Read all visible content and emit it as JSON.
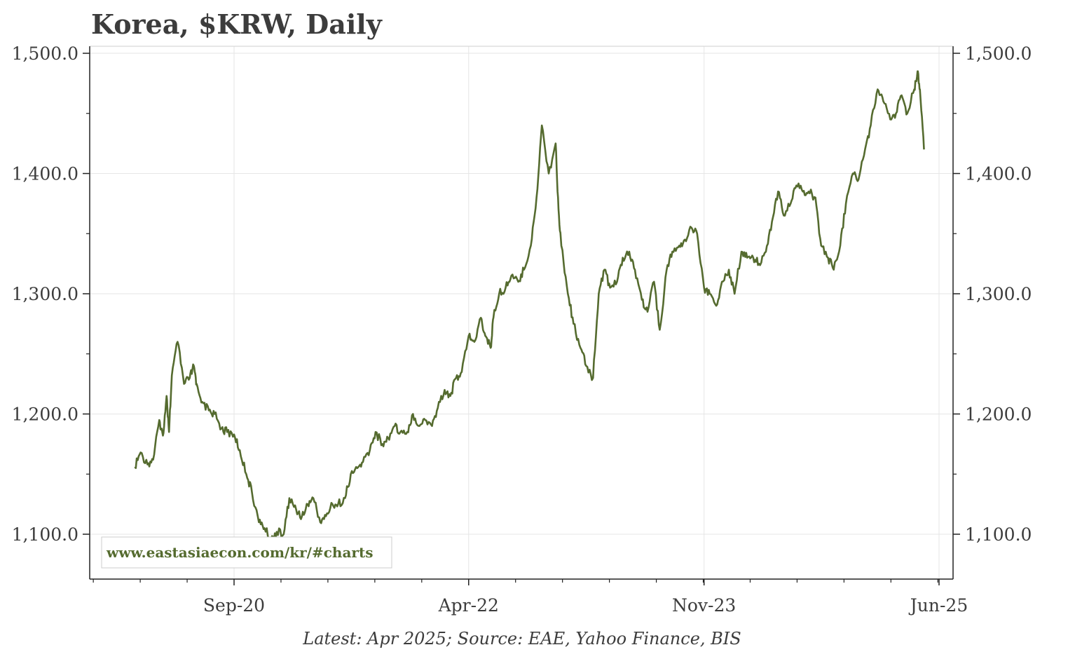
{
  "chart_data": {
    "type": "line",
    "title": "Korea, $KRW, Daily",
    "footnote": "Latest: Apr 2025; Source: EAE, Yahoo Finance, BIS",
    "watermark": "www.eastasiaecon.com/kr/#charts",
    "line_color": "#556b2f",
    "grid": true,
    "x_axis": {
      "ticks": [
        {
          "date": "2020-09-01",
          "label": "Sep-20"
        },
        {
          "date": "2022-04-01",
          "label": "Apr-22"
        },
        {
          "date": "2023-11-01",
          "label": "Nov-23"
        },
        {
          "date": "2025-06-01",
          "label": "Jun-25"
        }
      ],
      "range": [
        "2019-09-01",
        "2025-06-01"
      ]
    },
    "y_axis": {
      "range": [
        1066,
        1506
      ],
      "ticks": [
        {
          "value": 1100,
          "label": "1,100.0"
        },
        {
          "value": 1200,
          "label": "1,200.0"
        },
        {
          "value": 1300,
          "label": "1,300.0"
        },
        {
          "value": 1400,
          "label": "1,400.0"
        },
        {
          "value": 1500,
          "label": "1,500.0"
        }
      ]
    },
    "series": [
      {
        "x": [
          "2020-01-01",
          "2020-01-15",
          "2020-02-01",
          "2020-02-15",
          "2020-03-01",
          "2020-03-10",
          "2020-03-19",
          "2020-03-25",
          "2020-04-01",
          "2020-04-15",
          "2020-05-01",
          "2020-05-15",
          "2020-05-25",
          "2020-06-01",
          "2020-06-15",
          "2020-07-01",
          "2020-07-15",
          "2020-08-01",
          "2020-08-15",
          "2020-09-01",
          "2020-09-15",
          "2020-10-01",
          "2020-10-15",
          "2020-11-01",
          "2020-11-15",
          "2020-12-01",
          "2020-12-15",
          "2021-01-01",
          "2021-01-15",
          "2021-02-01",
          "2021-02-15",
          "2021-03-01",
          "2021-03-15",
          "2021-04-01",
          "2021-04-15",
          "2021-05-01",
          "2021-05-15",
          "2021-06-01",
          "2021-06-15",
          "2021-07-01",
          "2021-07-15",
          "2021-08-01",
          "2021-08-15",
          "2021-09-01",
          "2021-09-15",
          "2021-10-01",
          "2021-10-15",
          "2021-11-01",
          "2021-11-15",
          "2021-12-01",
          "2021-12-15",
          "2022-01-01",
          "2022-01-15",
          "2022-02-01",
          "2022-02-15",
          "2022-03-01",
          "2022-03-15",
          "2022-04-01",
          "2022-04-15",
          "2022-05-01",
          "2022-05-12",
          "2022-05-25",
          "2022-06-01",
          "2022-06-15",
          "2022-07-01",
          "2022-07-15",
          "2022-08-01",
          "2022-08-15",
          "2022-09-01",
          "2022-09-15",
          "2022-09-28",
          "2022-10-15",
          "2022-11-01",
          "2022-11-08",
          "2022-11-15",
          "2022-12-01",
          "2022-12-15",
          "2023-01-01",
          "2023-01-15",
          "2023-02-01",
          "2023-02-15",
          "2023-03-01",
          "2023-03-15",
          "2023-04-01",
          "2023-04-15",
          "2023-05-01",
          "2023-05-15",
          "2023-06-01",
          "2023-06-15",
          "2023-07-01",
          "2023-07-15",
          "2023-08-01",
          "2023-08-15",
          "2023-09-01",
          "2023-09-15",
          "2023-10-01",
          "2023-10-15",
          "2023-11-01",
          "2023-11-15",
          "2023-12-01",
          "2023-12-15",
          "2024-01-01",
          "2024-01-15",
          "2024-02-01",
          "2024-02-15",
          "2024-03-01",
          "2024-03-15",
          "2024-04-01",
          "2024-04-16",
          "2024-05-01",
          "2024-05-15",
          "2024-06-01",
          "2024-06-15",
          "2024-07-01",
          "2024-07-15",
          "2024-08-01",
          "2024-08-15",
          "2024-09-01",
          "2024-09-15",
          "2024-10-01",
          "2024-10-15",
          "2024-11-01",
          "2024-11-15",
          "2024-12-01",
          "2024-12-15",
          "2025-01-01",
          "2025-01-15",
          "2025-02-01",
          "2025-02-15",
          "2025-03-01",
          "2025-03-15",
          "2025-04-01",
          "2025-04-09",
          "2025-04-15",
          "2025-04-25"
        ],
        "y": [
          1156,
          1168,
          1158,
          1162,
          1195,
          1182,
          1215,
          1185,
          1232,
          1260,
          1225,
          1230,
          1240,
          1225,
          1210,
          1203,
          1200,
          1188,
          1185,
          1183,
          1170,
          1150,
          1135,
          1110,
          1105,
          1095,
          1102,
          1100,
          1130,
          1120,
          1115,
          1125,
          1130,
          1110,
          1115,
          1125,
          1125,
          1130,
          1150,
          1155,
          1160,
          1170,
          1185,
          1175,
          1180,
          1190,
          1185,
          1185,
          1200,
          1190,
          1195,
          1190,
          1205,
          1220,
          1215,
          1230,
          1235,
          1265,
          1260,
          1280,
          1265,
          1255,
          1280,
          1300,
          1305,
          1315,
          1310,
          1320,
          1340,
          1380,
          1440,
          1400,
          1425,
          1370,
          1340,
          1300,
          1275,
          1255,
          1240,
          1230,
          1300,
          1320,
          1305,
          1310,
          1330,
          1335,
          1320,
          1295,
          1285,
          1310,
          1270,
          1320,
          1335,
          1340,
          1345,
          1355,
          1350,
          1305,
          1300,
          1290,
          1310,
          1320,
          1300,
          1335,
          1330,
          1330,
          1325,
          1335,
          1360,
          1385,
          1365,
          1375,
          1390,
          1385,
          1385,
          1380,
          1340,
          1330,
          1320,
          1340,
          1375,
          1400,
          1395,
          1420,
          1440,
          1470,
          1460,
          1445,
          1450,
          1465,
          1450,
          1470,
          1485,
          1470,
          1420
        ]
      }
    ]
  }
}
